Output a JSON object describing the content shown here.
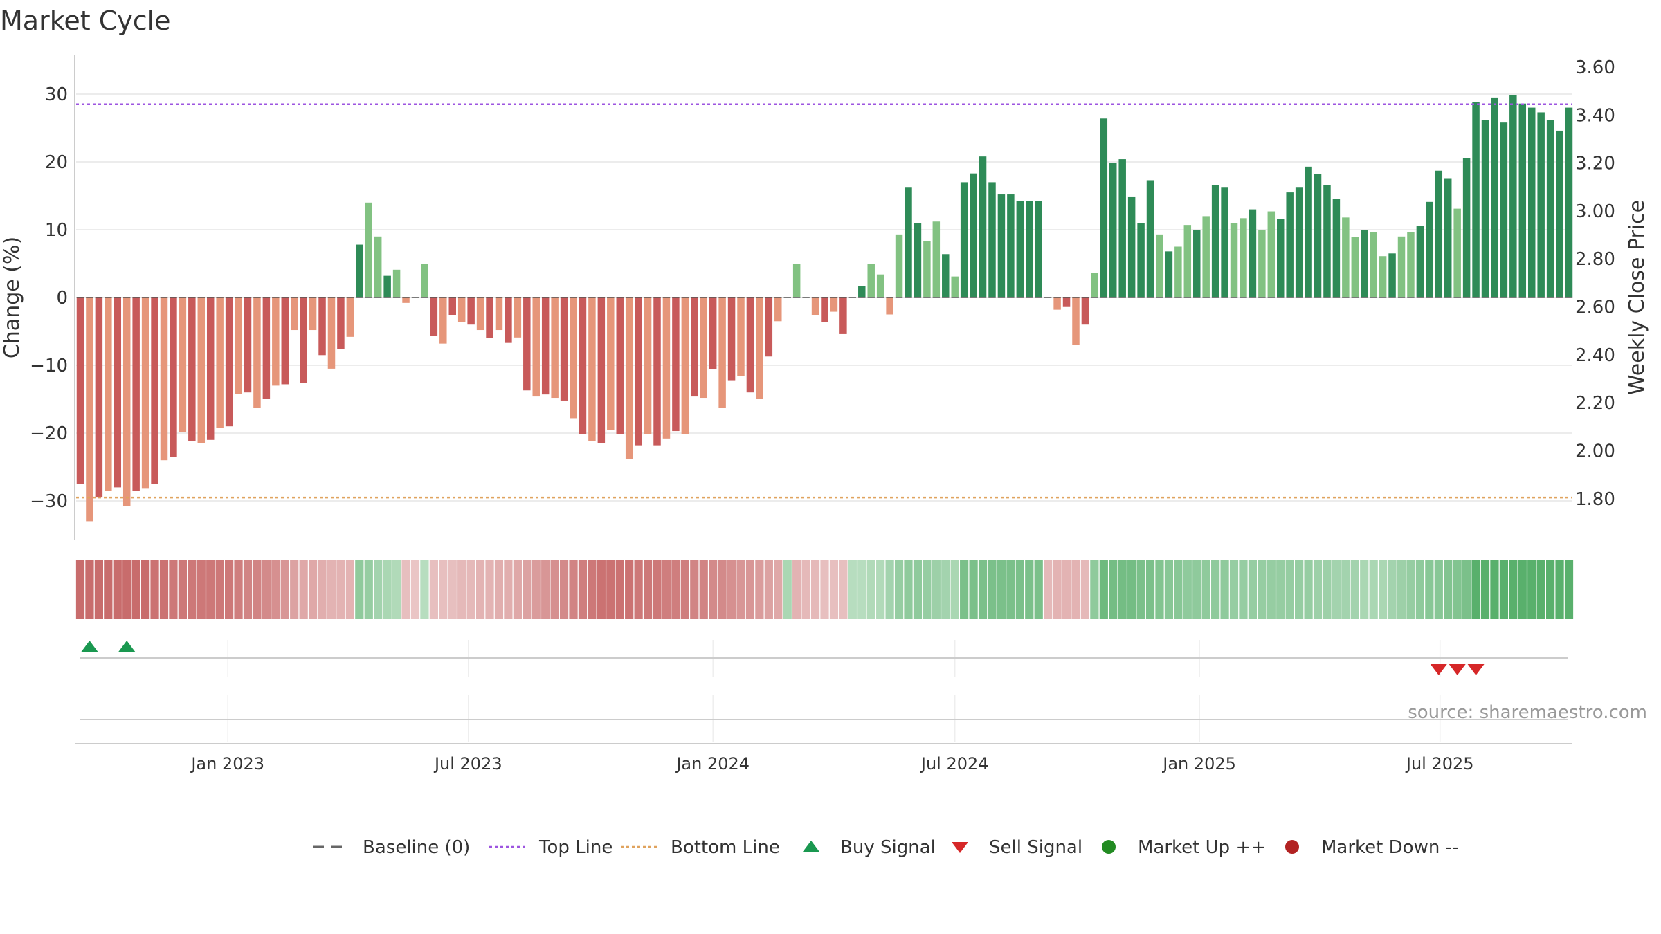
{
  "chart_data": {
    "type": "bar",
    "title": "Market Cycle",
    "ylabel": "Change (%)",
    "y2label": "Weekly Close Price",
    "ylim": [
      -35,
      36
    ],
    "y2lim": [
      1.71,
      3.62
    ],
    "yticks": [
      "30",
      "20",
      "10",
      "0",
      "−10",
      "−20",
      "−30"
    ],
    "yticks_values": [
      30,
      20,
      10,
      0,
      -10,
      -20,
      -30
    ],
    "y2ticks": [
      "3.60",
      "3.40",
      "3.20",
      "3.00",
      "2.80",
      "2.60",
      "2.40",
      "2.20",
      "2.00",
      "1.80"
    ],
    "y2ticks_values": [
      3.6,
      3.4,
      3.2,
      3.0,
      2.8,
      2.6,
      2.4,
      2.2,
      2.0,
      1.8
    ],
    "top_line": 28.5,
    "bottom_line": -29.5,
    "x_start": "2022-09-12",
    "x_step_days": 7,
    "xticks": [
      {
        "label": "Jan 2023",
        "date": "2023-01-01"
      },
      {
        "label": "Jul 2023",
        "date": "2023-07-01"
      },
      {
        "label": "Jan 2024",
        "date": "2024-01-01"
      },
      {
        "label": "Jul 2024",
        "date": "2024-07-01"
      },
      {
        "label": "Jan 2025",
        "date": "2025-01-01"
      },
      {
        "label": "Jul 2025",
        "date": "2025-07-01"
      }
    ],
    "values": [
      -27.5,
      -33,
      -29.5,
      -28.5,
      -28,
      -30.8,
      -28.5,
      -28.2,
      -27.5,
      -24,
      -23.5,
      -19.8,
      -21.2,
      -21.5,
      -21,
      -19.2,
      -19,
      -14.2,
      -14,
      -16.3,
      -15,
      -13,
      -12.8,
      -4.8,
      -12.6,
      -4.8,
      -8.5,
      -10.5,
      -7.6,
      -5.8,
      7.8,
      14,
      9,
      3.2,
      4.1,
      -0.8,
      0,
      5,
      -5.7,
      -6.8,
      -2.6,
      -3.6,
      -4,
      -4.8,
      -6,
      -4.8,
      -6.7,
      -5.9,
      -13.7,
      -14.6,
      -14.3,
      -14.8,
      -15.2,
      -17.8,
      -20.2,
      -21.2,
      -21.5,
      -19.5,
      -20.2,
      -23.8,
      -21.8,
      -20.2,
      -21.8,
      -20.8,
      -19.7,
      -20.2,
      -14.6,
      -14.8,
      -10.6,
      -16.3,
      -12.2,
      -11.6,
      -14,
      -14.9,
      -8.7,
      -3.5,
      0,
      4.9,
      0,
      -2.6,
      -3.6,
      -2.1,
      -5.4,
      0,
      1.7,
      5,
      3.4,
      -2.5,
      9.3,
      16.2,
      11,
      8.3,
      11.2,
      6.4,
      3.1,
      17,
      18.3,
      20.8,
      17,
      15.2,
      15.2,
      14.2,
      14.2,
      14.2,
      0,
      -1.8,
      -1.4,
      -7,
      -4,
      3.6,
      26.4,
      19.8,
      20.4,
      14.8,
      11,
      17.3,
      9.3,
      6.8,
      7.5,
      10.7,
      10,
      12,
      16.6,
      16.2,
      11,
      11.7,
      13,
      10,
      12.7,
      11.6,
      15.5,
      16.2,
      19.3,
      18.2,
      16.6,
      14.5,
      11.8,
      8.9,
      10,
      9.6,
      6.1,
      6.5,
      9,
      9.6,
      10.6,
      14.1,
      18.7,
      17.5,
      13.1,
      20.6,
      28.8,
      26.2,
      29.5,
      25.8,
      29.8,
      28.6,
      28,
      27.3,
      26.2,
      24.6,
      28
    ],
    "color_bins": [
      "#b3282d",
      "#d9573e",
      "#e07850",
      "#2a8147",
      "#5ab15c"
    ],
    "bar_colors": {
      "neg_dark": "#c85a5a",
      "neg_light": "#e6967a",
      "pos_dark": "#2e8b57",
      "pos_light": "#82c282"
    },
    "heat_strip": [
      0.9,
      0.9,
      0.9,
      0.9,
      0.9,
      0.9,
      0.9,
      0.9,
      0.85,
      0.85,
      0.8,
      0.8,
      0.8,
      0.8,
      0.8,
      0.8,
      0.8,
      0.75,
      0.7,
      0.7,
      0.65,
      0.6,
      0.55,
      0.45,
      0.4,
      0.4,
      0.35,
      0.3,
      0.3,
      0.3,
      -0.5,
      -0.45,
      -0.35,
      -0.3,
      -0.25,
      0.2,
      0.15,
      -0.2,
      0.2,
      0.2,
      0.2,
      0.25,
      0.25,
      0.3,
      0.3,
      0.35,
      0.35,
      0.4,
      0.45,
      0.5,
      0.55,
      0.6,
      0.65,
      0.7,
      0.75,
      0.8,
      0.85,
      0.85,
      0.85,
      0.85,
      0.8,
      0.8,
      0.8,
      0.75,
      0.75,
      0.75,
      0.7,
      0.7,
      0.65,
      0.65,
      0.6,
      0.55,
      0.55,
      0.5,
      0.45,
      0.4,
      -0.3,
      0.3,
      0.25,
      0.25,
      0.2,
      0.2,
      0.2,
      -0.2,
      -0.2,
      -0.25,
      -0.25,
      -0.35,
      -0.45,
      -0.5,
      -0.5,
      -0.45,
      -0.4,
      -0.35,
      -0.3,
      -0.65,
      -0.65,
      -0.65,
      -0.65,
      -0.65,
      -0.65,
      -0.65,
      -0.65,
      -0.65,
      0.25,
      0.3,
      0.3,
      0.3,
      0.25,
      -0.5,
      -0.75,
      -0.7,
      -0.7,
      -0.7,
      -0.65,
      -0.65,
      -0.6,
      -0.55,
      -0.55,
      -0.5,
      -0.5,
      -0.5,
      -0.5,
      -0.5,
      -0.45,
      -0.45,
      -0.45,
      -0.45,
      -0.45,
      -0.45,
      -0.45,
      -0.45,
      -0.45,
      -0.4,
      -0.4,
      -0.35,
      -0.35,
      -0.35,
      -0.3,
      -0.3,
      -0.3,
      -0.35,
      -0.4,
      -0.45,
      -0.5,
      -0.55,
      -0.55,
      -0.6,
      -0.6,
      -0.65,
      -0.9,
      -0.9,
      -0.9,
      -0.9,
      -0.9,
      -0.9,
      -0.9,
      -0.9,
      -0.9,
      -0.9,
      -0.9
    ],
    "buy_signals": [
      1,
      5
    ],
    "sell_signals": [
      146,
      148,
      150
    ],
    "source": "source: sharemaestro.com",
    "legend": [
      {
        "label": "Baseline (0)",
        "symbol": "dash",
        "color": "#666666"
      },
      {
        "label": "Top Line",
        "symbol": "dotted",
        "color": "#9d55e0"
      },
      {
        "label": "Bottom Line",
        "symbol": "dotted",
        "color": "#e0a35e"
      },
      {
        "label": "Buy Signal",
        "symbol": "triangle-up",
        "color": "#1a9850"
      },
      {
        "label": "Sell Signal",
        "symbol": "triangle-down",
        "color": "#d62728"
      },
      {
        "label": "Market Up ++",
        "symbol": "circle",
        "color": "#228b22"
      },
      {
        "label": "Market Down --",
        "symbol": "circle",
        "color": "#b22222"
      }
    ],
    "legend_position": "bottom",
    "grid": true
  }
}
